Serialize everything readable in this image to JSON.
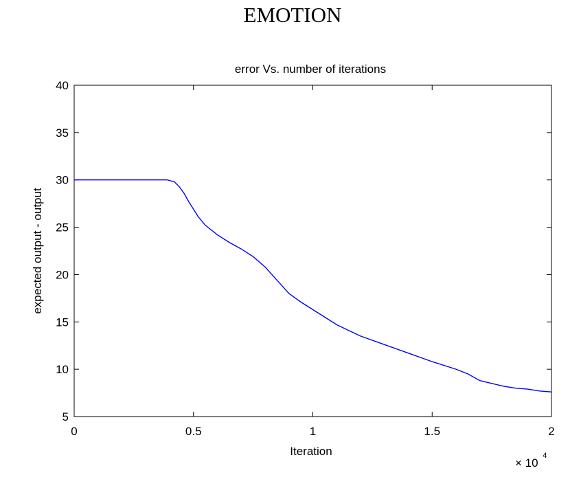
{
  "page": {
    "heading": "EMOTION"
  },
  "chart_data": {
    "type": "line",
    "title": "error Vs. number of iterations",
    "xlabel": "Iteration",
    "ylabel": "expected output - output",
    "x_multiplier_base": "× 10",
    "x_multiplier_exponent": "4",
    "xlim": [
      0,
      2
    ],
    "ylim": [
      5,
      40
    ],
    "x_ticks": [
      0,
      0.5,
      1,
      1.5,
      2
    ],
    "x_tick_labels": [
      "0",
      "0.5",
      "1",
      "1.5",
      "2"
    ],
    "y_ticks": [
      5,
      10,
      15,
      20,
      25,
      30,
      35,
      40
    ],
    "y_tick_labels": [
      "5",
      "10",
      "15",
      "20",
      "25",
      "30",
      "35",
      "40"
    ],
    "grid": false,
    "line_color": "#0000ff",
    "series": [
      {
        "x": [
          0,
          0.1,
          0.2,
          0.3,
          0.35,
          0.39,
          0.42,
          0.44,
          0.46,
          0.48,
          0.5,
          0.52,
          0.55,
          0.6,
          0.65,
          0.7,
          0.75,
          0.8,
          0.85,
          0.9,
          0.95,
          1.0,
          1.05,
          1.1,
          1.15,
          1.2,
          1.3,
          1.4,
          1.5,
          1.6,
          1.65,
          1.7,
          1.75,
          1.8,
          1.85,
          1.9,
          1.95,
          2.0
        ],
        "y": [
          30,
          30,
          30,
          30,
          30,
          30,
          29.8,
          29.3,
          28.6,
          27.7,
          26.9,
          26.1,
          25.2,
          24.2,
          23.4,
          22.7,
          21.9,
          20.8,
          19.4,
          18.0,
          17.1,
          16.3,
          15.5,
          14.7,
          14.1,
          13.5,
          12.6,
          11.7,
          10.8,
          10.0,
          9.5,
          8.8,
          8.5,
          8.2,
          8.0,
          7.9,
          7.7,
          7.6
        ]
      }
    ]
  }
}
